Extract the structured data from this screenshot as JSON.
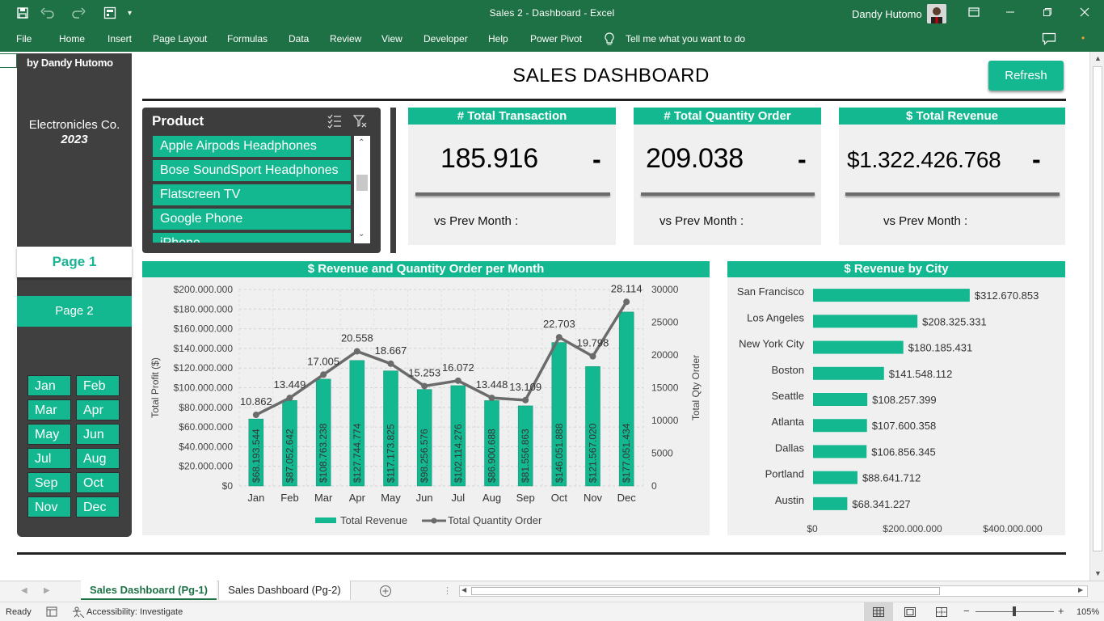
{
  "window": {
    "title": "Sales 2 - Dashboard  -  Excel",
    "user": "Dandy Hutomo",
    "icons": [
      "save-icon",
      "undo-icon",
      "redo-icon",
      "form-icon",
      "customize-icon",
      "ribbon-display-icon",
      "minimize-icon",
      "maximize-icon",
      "close-icon",
      "comments-icon"
    ]
  },
  "ribbon": {
    "tabs": [
      "File",
      "Home",
      "Insert",
      "Page Layout",
      "Formulas",
      "Data",
      "Review",
      "View",
      "Developer",
      "Help",
      "Power Pivot"
    ],
    "tell_me": "Tell me what you want to do"
  },
  "sidebar": {
    "byline": "by Dandy Hutomo",
    "company": "Electronicles Co.",
    "year": "2023",
    "page1": "Page 1",
    "page2": "Page 2",
    "months": [
      "Jan",
      "Feb",
      "Mar",
      "Apr",
      "May",
      "Jun",
      "Jul",
      "Aug",
      "Sep",
      "Oct",
      "Nov",
      "Dec"
    ]
  },
  "dashboard": {
    "title": "SALES DASHBOARD",
    "refresh": "Refresh"
  },
  "slicer": {
    "title": "Product",
    "items": [
      "Apple Airpods Headphones",
      "Bose SoundSport Headphones",
      "Flatscreen TV",
      "Google Phone",
      "iPhone"
    ]
  },
  "kpis": [
    {
      "title": "# Total Transaction",
      "value": "185.916",
      "delta": "-",
      "vs": "vs Prev Month :"
    },
    {
      "title": "# Total Quantity Order",
      "value": "209.038",
      "delta": "-",
      "vs": "vs Prev Month :"
    },
    {
      "title": "$ Total Revenue",
      "value": "$1.322.426.768",
      "delta": "-",
      "vs": "vs Prev Month :"
    }
  ],
  "colors": {
    "accent": "#14b890",
    "dark": "#404040",
    "excel_green": "#1e7145",
    "line": "#6b6b6b"
  },
  "chart_data": [
    {
      "type": "bar",
      "title": "$ Revenue and Quantity Order per Month",
      "categories": [
        "Jan",
        "Feb",
        "Mar",
        "Apr",
        "May",
        "Jun",
        "Jul",
        "Aug",
        "Sep",
        "Oct",
        "Nov",
        "Dec"
      ],
      "ylabel": "Total Profit ($)",
      "y2label": "Total Qty Order",
      "ylim": [
        0,
        200000000
      ],
      "y2lim": [
        0,
        30000
      ],
      "yticks": [
        "$0",
        "$20.000.000",
        "$40.000.000",
        "$60.000.000",
        "$80.000.000",
        "$100.000.000",
        "$120.000.000",
        "$140.000.000",
        "$160.000.000",
        "$180.000.000",
        "$200.000.000"
      ],
      "y2ticks": [
        "0",
        "5000",
        "10000",
        "15000",
        "20000",
        "25000",
        "30000"
      ],
      "legend": [
        "Total Revenue",
        "Total Quantity Order"
      ],
      "legend_position": "bottom",
      "series": [
        {
          "name": "Total Revenue",
          "kind": "bar",
          "values": [
            68193544,
            87052642,
            108763238,
            127744774,
            117173825,
            98256576,
            102114276,
            86900688,
            81556863,
            146051888,
            121567020,
            177051434
          ],
          "labels": [
            "$68.193.544",
            "$87.052.642",
            "$108.763.238",
            "$127.744.774",
            "$117.173.825",
            "$98.256.576",
            "$102.114.276",
            "$86.900.688",
            "$81.556.863",
            "$146.051.888",
            "$121.567.020",
            "$177.051.434"
          ]
        },
        {
          "name": "Total Quantity Order",
          "kind": "line",
          "values": [
            10862,
            13449,
            17005,
            20558,
            18667,
            15253,
            16072,
            13448,
            13109,
            22703,
            19798,
            28114
          ],
          "labels": [
            "10.862",
            "13.449",
            "17.005",
            "20.558",
            "18.667",
            "15.253",
            "16.072",
            "13.448",
            "13.109",
            "22.703",
            "19.798",
            "28.114"
          ]
        }
      ]
    },
    {
      "type": "bar",
      "orientation": "horizontal",
      "title": "$ Revenue by City",
      "categories": [
        "San Francisco",
        "Los Angeles",
        "New York City",
        "Boston",
        "Seattle",
        "Atlanta",
        "Dallas",
        "Portland",
        "Austin"
      ],
      "values": [
        312670853,
        208325331,
        180185431,
        141548112,
        108257399,
        107600358,
        106856345,
        88641712,
        68341227
      ],
      "labels": [
        "$312.670.853",
        "$208.325.331",
        "$180.185.431",
        "$141.548.112",
        "$108.257.399",
        "$107.600.358",
        "$106.856.345",
        "$88.641.712",
        "$68.341.227"
      ],
      "xlim": [
        0,
        400000000
      ],
      "xticks": [
        "$0",
        "$200.000.000",
        "$400.000.000"
      ]
    }
  ],
  "sheets": {
    "tabs": [
      "Sales Dashboard (Pg-1)",
      "Sales Dashboard (Pg-2)"
    ],
    "active": "Sales Dashboard (Pg-1)"
  },
  "status": {
    "ready": "Ready",
    "accessibility": "Accessibility: Investigate",
    "zoom": "105%"
  }
}
